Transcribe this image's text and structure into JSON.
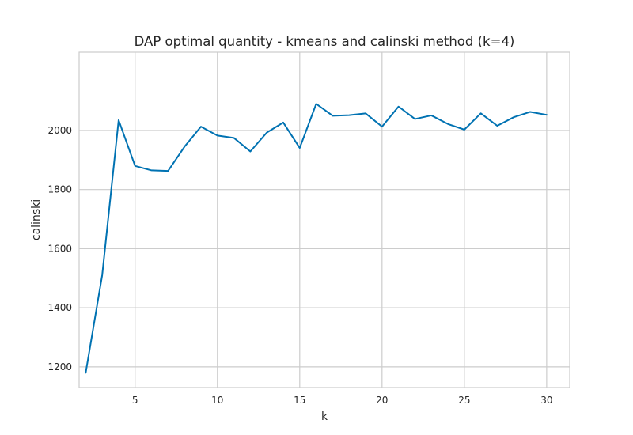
{
  "chart_data": {
    "type": "line",
    "title": "DAP optimal quantity - kmeans and calinski method (k=4)",
    "xlabel": "k",
    "ylabel": "calinski",
    "xlim": [
      1.6,
      31.4
    ],
    "ylim": [
      1130,
      2265
    ],
    "x_ticks": [
      5,
      10,
      15,
      20,
      25,
      30
    ],
    "y_ticks": [
      1200,
      1400,
      1600,
      1800,
      2000
    ],
    "grid": true,
    "legend": "none",
    "series": [
      {
        "color": "#0072b2",
        "x": [
          2,
          3,
          4,
          5,
          6,
          7,
          8,
          9,
          10,
          11,
          12,
          13,
          14,
          15,
          16,
          17,
          18,
          19,
          20,
          21,
          22,
          23,
          24,
          25,
          26,
          27,
          28,
          29,
          30
        ],
        "values": [
          1180,
          1510,
          2035,
          1880,
          1865,
          1863,
          1945,
          2013,
          1983,
          1975,
          1929,
          1993,
          2027,
          1941,
          2090,
          2050,
          2052,
          2058,
          2013,
          2081,
          2039,
          2051,
          2022,
          2003,
          2058,
          2016,
          2045,
          2063,
          2053
        ]
      }
    ]
  }
}
